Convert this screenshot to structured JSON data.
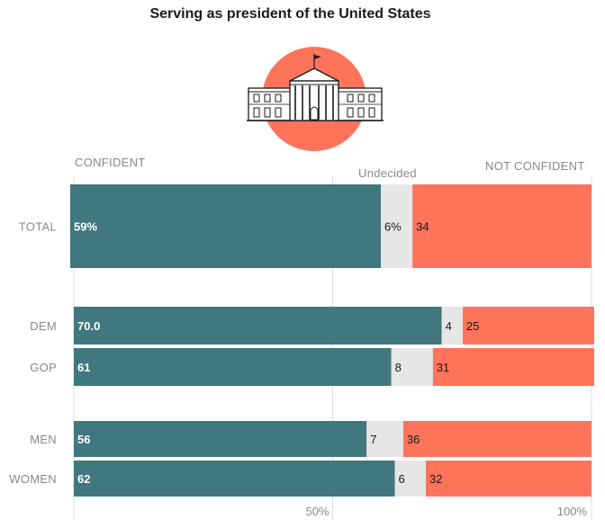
{
  "title": "Serving as president of the United States",
  "headers": {
    "confident": "CONFIDENT",
    "undecided": "Undecided",
    "not_confident": "NOT CONFIDENT"
  },
  "colors": {
    "confident": "#41777f",
    "undecided": "#e6e6e6",
    "not_confident": "#fd745b",
    "icon_circle": "#fd745b"
  },
  "icon": "white-house-icon",
  "chart_data": {
    "type": "bar",
    "orientation": "horizontal",
    "stacked": true,
    "title": "Serving as president of the United States",
    "categories": [
      "TOTAL",
      "DEM",
      "GOP",
      "MEN",
      "WOMEN"
    ],
    "series": [
      {
        "name": "CONFIDENT",
        "values": [
          59,
          70.0,
          61,
          56,
          62
        ],
        "labels": [
          "59%",
          "70.0",
          "61",
          "56",
          "62"
        ]
      },
      {
        "name": "Undecided",
        "values": [
          6,
          4,
          8,
          7,
          6
        ],
        "labels": [
          "6%",
          "4",
          "8",
          "7",
          "6"
        ]
      },
      {
        "name": "NOT CONFIDENT",
        "values": [
          34,
          25,
          31,
          36,
          32
        ],
        "labels": [
          "34",
          "25",
          "31",
          "36",
          "32"
        ]
      }
    ],
    "xlim": [
      0,
      100
    ],
    "x_tick_labels": [
      "50%",
      "100%"
    ],
    "x_ticks": [
      50,
      100
    ],
    "grid": true
  }
}
